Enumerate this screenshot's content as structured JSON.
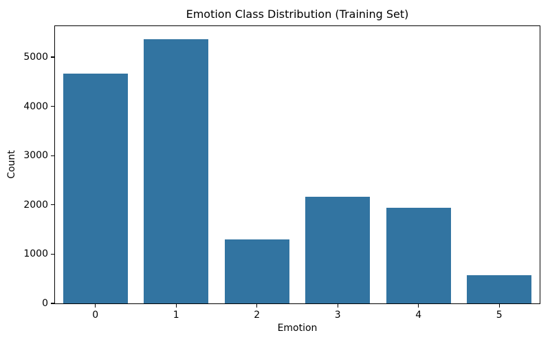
{
  "chart_data": {
    "type": "bar",
    "title": "Emotion Class Distribution (Training Set)",
    "xlabel": "Emotion",
    "ylabel": "Count",
    "categories": [
      "0",
      "1",
      "2",
      "3",
      "4",
      "5"
    ],
    "values": [
      4666,
      5362,
      1304,
      2159,
      1937,
      572
    ],
    "ylim": [
      0,
      5630
    ],
    "yticks": [
      0,
      1000,
      2000,
      3000,
      4000,
      5000
    ],
    "bar_color": "#3274a1",
    "bar_width_fraction": 0.8,
    "grid": false,
    "legend_position": "none",
    "plot_background": "#ffffff",
    "spine_color": "#000000"
  }
}
